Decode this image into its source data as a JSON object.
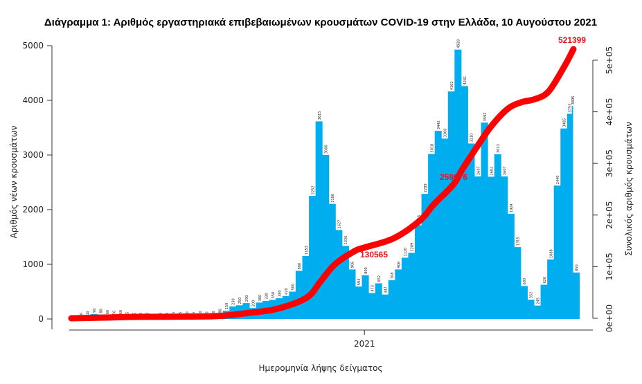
{
  "chart_data": {
    "type": "bar",
    "title": "Διάγραμμα 1: Αριθμός εργαστηριακά επιβεβαιωμένων κρουσμάτων COVID-19 στην Ελλάδα, 10 Αυγούστου 2021",
    "xlabel": "Ημερομηνία λήψης δείγματος",
    "ylabel": "Αριθμός νέων κρουσμάτων",
    "y2label": "Συνολικός αριθμός κρουσμάτων",
    "xlim": [
      "2020-02-26",
      "2021-08-10"
    ],
    "x_ticks": [
      {
        "date": "2021-01-01",
        "label": "2021"
      }
    ],
    "ylim": [
      0,
      5000
    ],
    "y_ticks": [
      "0",
      "1000",
      "2000",
      "3000",
      "4000",
      "5000"
    ],
    "y2lim": [
      0,
      500000
    ],
    "y2_ticks": [
      "0e+00",
      "1e+05",
      "2e+05",
      "3e+05",
      "4e+05",
      "5e+05"
    ],
    "grid": false,
    "colors": {
      "bars": "#00aeef",
      "cumulative": "#ff0000",
      "annotation": "#e8141c"
    },
    "bars": {
      "x": [
        "2020-02-26",
        "2020-03-04",
        "2020-03-11",
        "2020-03-18",
        "2020-03-25",
        "2020-04-01",
        "2020-04-08",
        "2020-04-15",
        "2020-04-22",
        "2020-04-29",
        "2020-05-06",
        "2020-05-13",
        "2020-05-20",
        "2020-05-27",
        "2020-06-03",
        "2020-06-10",
        "2020-06-17",
        "2020-06-24",
        "2020-07-01",
        "2020-07-08",
        "2020-07-15",
        "2020-07-22",
        "2020-07-29",
        "2020-08-05",
        "2020-08-12",
        "2020-08-19",
        "2020-08-26",
        "2020-09-02",
        "2020-09-09",
        "2020-09-16",
        "2020-09-23",
        "2020-09-30",
        "2020-10-07",
        "2020-10-14",
        "2020-10-21",
        "2020-10-28",
        "2020-11-04",
        "2020-11-11",
        "2020-11-18",
        "2020-11-25",
        "2020-12-02",
        "2020-12-09",
        "2020-12-16",
        "2020-12-23",
        "2020-12-30",
        "2021-01-06",
        "2021-01-13",
        "2021-01-20",
        "2021-01-27",
        "2021-02-03",
        "2021-02-10",
        "2021-02-17",
        "2021-02-24",
        "2021-03-03",
        "2021-03-10",
        "2021-03-17",
        "2021-03-24",
        "2021-03-31",
        "2021-04-07",
        "2021-04-14",
        "2021-04-21",
        "2021-04-28",
        "2021-05-05",
        "2021-05-12",
        "2021-05-19",
        "2021-05-26",
        "2021-06-02",
        "2021-06-09",
        "2021-06-16",
        "2021-06-23",
        "2021-06-30",
        "2021-07-07",
        "2021-07-14",
        "2021-07-21",
        "2021-07-28",
        "2021-08-04",
        "2021-08-09",
        "2021-08-10"
      ],
      "values": [
        3,
        10,
        40,
        90,
        80,
        60,
        50,
        60,
        25,
        15,
        10,
        12,
        8,
        10,
        15,
        20,
        25,
        30,
        20,
        40,
        30,
        40,
        80,
        150,
        230,
        250,
        290,
        200,
        300,
        330,
        350,
        380,
        420,
        500,
        880,
        1153,
        2252,
        3615,
        3000,
        2106,
        1627,
        1336,
        906,
        593,
        800,
        473,
        652,
        447,
        708,
        906,
        1120,
        1209,
        1715,
        2289,
        3018,
        3442,
        3300,
        4162,
        4928,
        4261,
        3210,
        2607,
        3592,
        2602,
        3013,
        2607,
        1924,
        1315,
        603,
        352,
        245,
        626,
        1088,
        2440,
        3485,
        3753,
        3895,
        850
      ]
    },
    "cumulative": {
      "x": [
        "2020-02-26",
        "2020-04-01",
        "2020-05-01",
        "2020-06-01",
        "2020-07-01",
        "2020-08-01",
        "2020-09-01",
        "2020-10-01",
        "2020-11-01",
        "2020-11-15",
        "2020-12-01",
        "2020-12-22",
        "2021-01-01",
        "2021-02-01",
        "2021-03-01",
        "2021-03-15",
        "2021-04-05",
        "2021-04-15",
        "2021-05-01",
        "2021-05-15",
        "2021-06-01",
        "2021-06-15",
        "2021-07-01",
        "2021-07-15",
        "2021-08-01",
        "2021-08-10"
      ],
      "values": [
        3,
        1300,
        2600,
        2900,
        3400,
        4500,
        10500,
        18500,
        40000,
        70000,
        105000,
        130565,
        137000,
        155000,
        190000,
        220000,
        259076,
        290000,
        335000,
        372000,
        405000,
        418000,
        425000,
        440000,
        490000,
        521399
      ]
    },
    "annotations": [
      "130565",
      "259076",
      "521399"
    ]
  }
}
